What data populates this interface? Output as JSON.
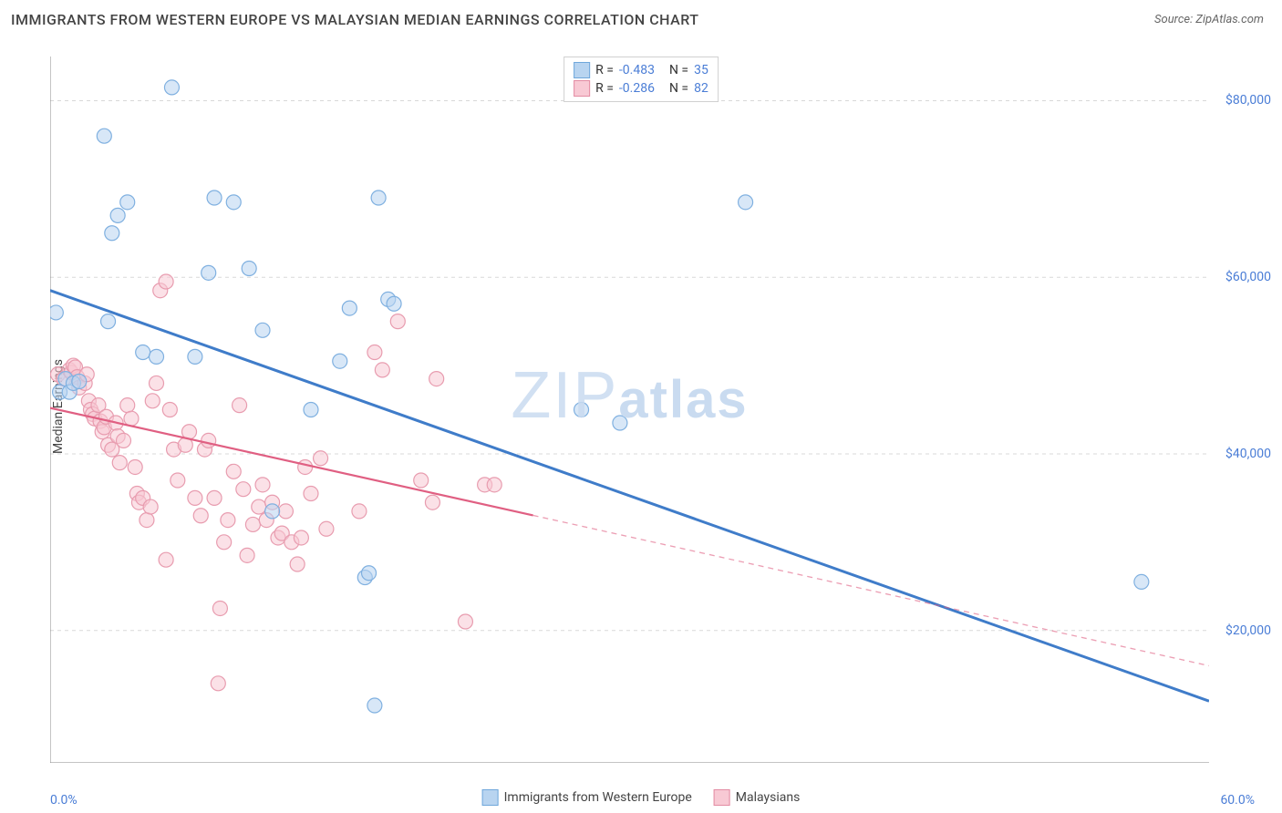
{
  "header": {
    "title": "IMMIGRANTS FROM WESTERN EUROPE VS MALAYSIAN MEDIAN EARNINGS CORRELATION CHART",
    "source": "Source: ZipAtlas.com"
  },
  "chart": {
    "type": "scatter",
    "ylabel": "Median Earnings",
    "xlim": [
      0,
      60
    ],
    "ylim": [
      5000,
      85000
    ],
    "xticks": [
      0,
      5,
      10,
      15,
      20,
      25,
      30,
      35,
      40,
      45,
      50,
      55,
      60
    ],
    "xtick_labels": {
      "0": "0.0%",
      "60": "60.0%"
    },
    "yticks": [
      20000,
      40000,
      60000,
      80000
    ],
    "ytick_labels": [
      "$20,000",
      "$40,000",
      "$60,000",
      "$80,000"
    ],
    "ygrid_values": [
      20000,
      40000,
      60000,
      80000
    ],
    "background_color": "#ffffff",
    "grid_color": "#d8d8d8",
    "grid_dash": "4,4",
    "axis_color": "#888888",
    "marker_radius": 8,
    "marker_stroke_width": 1.2,
    "watermark": "ZIPatlas",
    "watermark_color": "#c9dbf0",
    "series": [
      {
        "name": "Immigrants from Western Europe",
        "color_fill": "#b8d4f0",
        "color_stroke": "#7fb0e0",
        "swatch_fill": "#b8d4f0",
        "swatch_stroke": "#6fa7db",
        "R": "-0.483",
        "N": "35",
        "trend": {
          "x1": 0,
          "y1": 58500,
          "x2": 60,
          "y2": 12000,
          "solid_to_x": 60,
          "width": 3,
          "color": "#3f7cc9"
        },
        "points": [
          [
            0.3,
            56000
          ],
          [
            0.5,
            47000
          ],
          [
            0.8,
            48500
          ],
          [
            1.0,
            47000
          ],
          [
            1.2,
            48000
          ],
          [
            1.5,
            48200
          ],
          [
            2.8,
            76000
          ],
          [
            3.2,
            65000
          ],
          [
            3.5,
            67000
          ],
          [
            4.0,
            68500
          ],
          [
            6.3,
            81500
          ],
          [
            3.0,
            55000
          ],
          [
            4.8,
            51500
          ],
          [
            5.5,
            51000
          ],
          [
            7.5,
            51000
          ],
          [
            8.2,
            60500
          ],
          [
            8.5,
            69000
          ],
          [
            9.5,
            68500
          ],
          [
            10.3,
            61000
          ],
          [
            11.0,
            54000
          ],
          [
            13.5,
            45000
          ],
          [
            17.0,
            69000
          ],
          [
            15.5,
            56500
          ],
          [
            15.0,
            50500
          ],
          [
            16.3,
            26000
          ],
          [
            16.5,
            26500
          ],
          [
            16.8,
            11500
          ],
          [
            17.5,
            57500
          ],
          [
            17.8,
            57000
          ],
          [
            11.5,
            33500
          ],
          [
            27.5,
            45000
          ],
          [
            29.5,
            43500
          ],
          [
            36.0,
            68500
          ],
          [
            56.5,
            25500
          ]
        ]
      },
      {
        "name": "Malaysians",
        "color_fill": "#f8c9d4",
        "color_stroke": "#e89caf",
        "swatch_fill": "#f8c9d4",
        "swatch_stroke": "#e38ba2",
        "R": "-0.286",
        "N": "82",
        "trend": {
          "x1": 0,
          "y1": 45200,
          "x2": 60,
          "y2": 16000,
          "solid_to_x": 25,
          "width": 2.2,
          "color": "#e05f82"
        },
        "points": [
          [
            0.4,
            49000
          ],
          [
            0.7,
            48500
          ],
          [
            1.0,
            49500
          ],
          [
            1.1,
            49200
          ],
          [
            1.2,
            50000
          ],
          [
            1.3,
            49800
          ],
          [
            1.4,
            48700
          ],
          [
            1.5,
            47500
          ],
          [
            1.8,
            48000
          ],
          [
            1.9,
            49000
          ],
          [
            2.0,
            46000
          ],
          [
            2.1,
            45000
          ],
          [
            2.2,
            44500
          ],
          [
            2.3,
            44000
          ],
          [
            2.5,
            45500
          ],
          [
            2.6,
            43700
          ],
          [
            2.7,
            42500
          ],
          [
            2.8,
            43000
          ],
          [
            2.9,
            44200
          ],
          [
            3.0,
            41000
          ],
          [
            3.2,
            40500
          ],
          [
            3.4,
            43500
          ],
          [
            3.5,
            42000
          ],
          [
            3.6,
            39000
          ],
          [
            3.8,
            41500
          ],
          [
            4.0,
            45500
          ],
          [
            4.2,
            44000
          ],
          [
            4.4,
            38500
          ],
          [
            4.5,
            35500
          ],
          [
            4.6,
            34500
          ],
          [
            4.8,
            35000
          ],
          [
            5.0,
            32500
          ],
          [
            5.2,
            34000
          ],
          [
            5.3,
            46000
          ],
          [
            5.5,
            48000
          ],
          [
            5.7,
            58500
          ],
          [
            6.0,
            59500
          ],
          [
            6.2,
            45000
          ],
          [
            6.4,
            40500
          ],
          [
            6.6,
            37000
          ],
          [
            7.0,
            41000
          ],
          [
            7.2,
            42500
          ],
          [
            7.5,
            35000
          ],
          [
            7.8,
            33000
          ],
          [
            8.0,
            40500
          ],
          [
            8.2,
            41500
          ],
          [
            8.5,
            35000
          ],
          [
            8.8,
            22500
          ],
          [
            9.0,
            30000
          ],
          [
            9.2,
            32500
          ],
          [
            9.5,
            38000
          ],
          [
            9.8,
            45500
          ],
          [
            10.0,
            36000
          ],
          [
            10.2,
            28500
          ],
          [
            10.5,
            32000
          ],
          [
            10.8,
            34000
          ],
          [
            11.0,
            36500
          ],
          [
            11.2,
            32500
          ],
          [
            11.5,
            34500
          ],
          [
            11.8,
            30500
          ],
          [
            12.0,
            31000
          ],
          [
            12.2,
            33500
          ],
          [
            12.5,
            30000
          ],
          [
            12.8,
            27500
          ],
          [
            13.0,
            30500
          ],
          [
            13.2,
            38500
          ],
          [
            13.5,
            35500
          ],
          [
            14.0,
            39500
          ],
          [
            14.3,
            31500
          ],
          [
            8.7,
            14000
          ],
          [
            6.0,
            28000
          ],
          [
            18.0,
            55000
          ],
          [
            17.2,
            49500
          ],
          [
            16.8,
            51500
          ],
          [
            16.0,
            33500
          ],
          [
            19.2,
            37000
          ],
          [
            19.8,
            34500
          ],
          [
            21.5,
            21000
          ],
          [
            22.5,
            36500
          ],
          [
            23.0,
            36500
          ],
          [
            20.0,
            48500
          ]
        ]
      }
    ],
    "bottom_legend": [
      {
        "label": "Immigrants from Western Europe",
        "swatch_fill": "#b8d4f0",
        "swatch_stroke": "#6fa7db"
      },
      {
        "label": "Malaysians",
        "swatch_fill": "#f8c9d4",
        "swatch_stroke": "#e38ba2"
      }
    ]
  }
}
